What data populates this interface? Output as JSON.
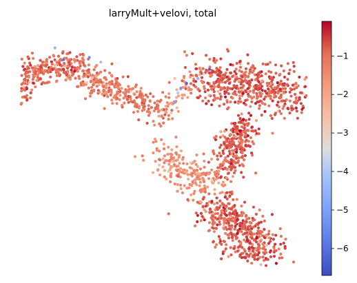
{
  "chart_data": {
    "type": "scatter",
    "title": "larryMult+velovi, total",
    "xlabel": "",
    "ylabel": "",
    "axes_visible": false,
    "grid": false,
    "colormap": "coolwarm",
    "color_range": [
      -6.7,
      -0.1
    ],
    "colorbar": {
      "position": "right",
      "ticks": [
        -6,
        -5,
        -4,
        -3,
        -2,
        -1
      ],
      "tick_labels": [
        "−6",
        "−5",
        "−4",
        "−3",
        "−2",
        "−1"
      ]
    },
    "embedding_segments": [
      {
        "region": "upper-left arm",
        "from": [
          0.0,
          0.8
        ],
        "to": [
          0.2,
          0.85
        ],
        "width": 0.06,
        "n": 220,
        "mean_value": -0.9
      },
      {
        "region": "left arm hook",
        "from": [
          0.0,
          0.7
        ],
        "to": [
          0.02,
          0.78
        ],
        "width": 0.03,
        "n": 30,
        "mean_value": -0.8
      },
      {
        "region": "left-middle arm",
        "from": [
          0.2,
          0.82
        ],
        "to": [
          0.5,
          0.65
        ],
        "width": 0.06,
        "n": 300,
        "mean_value": -1.1
      },
      {
        "region": "bridge",
        "from": [
          0.5,
          0.65
        ],
        "to": [
          0.62,
          0.82
        ],
        "width": 0.04,
        "n": 40,
        "mean_value": -1.8
      },
      {
        "region": "upper-right cluster",
        "from": [
          0.62,
          0.8
        ],
        "to": [
          0.98,
          0.72
        ],
        "width": 0.1,
        "n": 520,
        "mean_value": -0.8
      },
      {
        "region": "right stem",
        "from": [
          0.78,
          0.6
        ],
        "to": [
          0.72,
          0.4
        ],
        "width": 0.06,
        "n": 260,
        "mean_value": -0.8
      },
      {
        "region": "central cloud",
        "from": [
          0.5,
          0.45
        ],
        "to": [
          0.68,
          0.33
        ],
        "width": 0.08,
        "n": 230,
        "mean_value": -1.5
      },
      {
        "region": "lower blob",
        "from": [
          0.68,
          0.25
        ],
        "to": [
          0.86,
          0.03
        ],
        "width": 0.09,
        "n": 450,
        "mean_value": -0.8
      }
    ],
    "low_value_points": [
      {
        "x": 0.12,
        "y": 0.92,
        "value": -4.5
      },
      {
        "x": 0.15,
        "y": 0.87,
        "value": -6.0
      },
      {
        "x": 0.24,
        "y": 0.88,
        "value": -5.5
      },
      {
        "x": 0.28,
        "y": 0.86,
        "value": -4.2
      },
      {
        "x": 0.55,
        "y": 0.73,
        "value": -4.0
      },
      {
        "x": 0.56,
        "y": 0.75,
        "value": -5.2
      },
      {
        "x": 0.58,
        "y": 0.77,
        "value": -6.2
      },
      {
        "x": 0.54,
        "y": 0.69,
        "value": -5.0
      },
      {
        "x": 0.66,
        "y": 0.83,
        "value": -6.3
      },
      {
        "x": 0.62,
        "y": 0.79,
        "value": -4.6
      },
      {
        "x": 0.64,
        "y": 0.81,
        "value": -3.6
      }
    ]
  }
}
